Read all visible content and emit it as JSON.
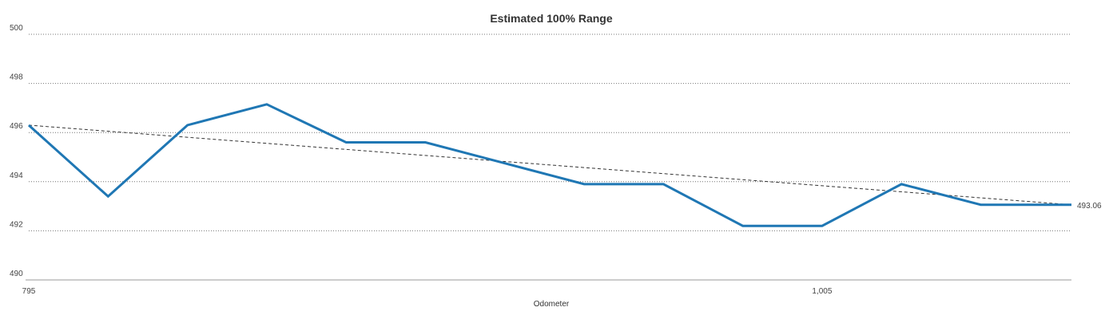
{
  "chart_data": {
    "type": "line",
    "title": "Estimated 100% Range",
    "xlabel": "Odometer",
    "ylabel": "",
    "ylim": [
      490,
      500
    ],
    "yticks": [
      "490",
      "492",
      "494",
      "496",
      "498",
      "500"
    ],
    "xticks": [
      {
        "value": 795,
        "label": "795"
      },
      {
        "value": 1005,
        "label": "1,005"
      }
    ],
    "xlim": [
      795,
      1071
    ],
    "grid": true,
    "legend": "none",
    "colors": {
      "series": "#1f77b4",
      "trend": "#333333",
      "grid": "#777777",
      "axis": "#999999"
    },
    "series": [
      {
        "x": [
          795,
          816,
          837,
          858,
          879,
          900,
          921,
          942,
          963,
          984,
          1005,
          1026,
          1047,
          1071
        ],
        "values": [
          496.3,
          493.4,
          496.3,
          497.15,
          495.6,
          495.6,
          494.75,
          493.9,
          493.9,
          492.2,
          492.2,
          493.9,
          493.06,
          493.06
        ]
      }
    ],
    "trendline": {
      "style": "dashed",
      "start": {
        "x": 795,
        "y": 496.3
      },
      "end": {
        "x": 1071,
        "y": 493.06
      }
    },
    "end_label": "493.06"
  }
}
